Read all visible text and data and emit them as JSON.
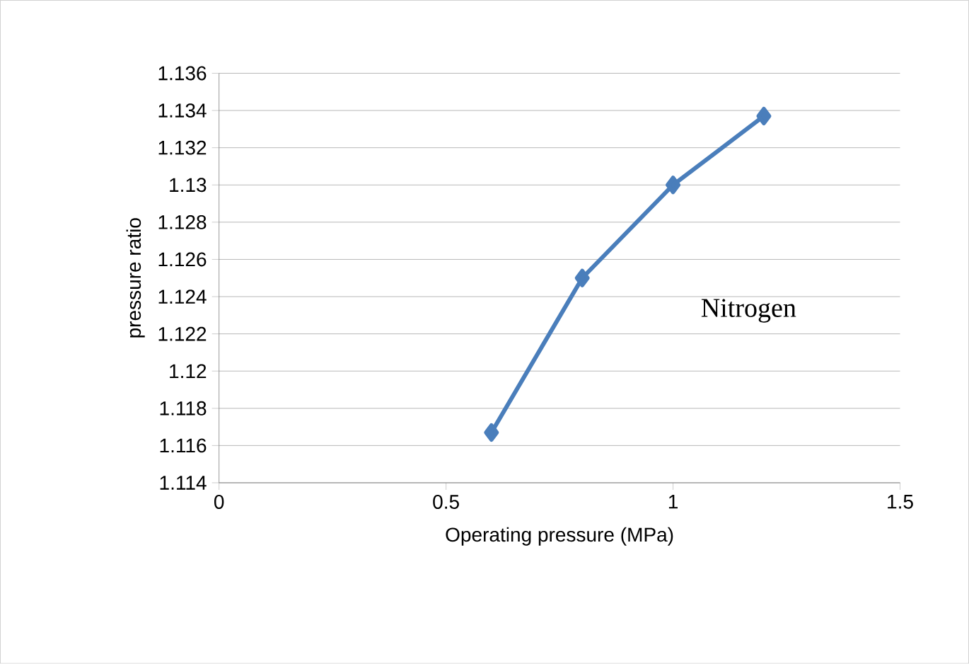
{
  "chart_data": {
    "type": "line",
    "xlabel": "Operating pressure (MPa)",
    "ylabel": "pressure ratio",
    "annotations": [
      "Nitrogen"
    ],
    "x": [
      0.6,
      0.8,
      1.0,
      1.2
    ],
    "series": [
      {
        "color": "#4a7ebb",
        "values": [
          1.1167,
          1.125,
          1.13,
          1.1337
        ]
      }
    ],
    "xlim": [
      0,
      1.5
    ],
    "xticks": [
      0,
      0.5,
      1,
      1.5
    ],
    "ylim": [
      1.114,
      1.136
    ],
    "yticks": [
      1.114,
      1.116,
      1.118,
      1.12,
      1.122,
      1.124,
      1.126,
      1.128,
      1.13,
      1.132,
      1.134,
      1.136
    ],
    "grid": "y",
    "marker": "diamond",
    "line_style": "solid"
  }
}
